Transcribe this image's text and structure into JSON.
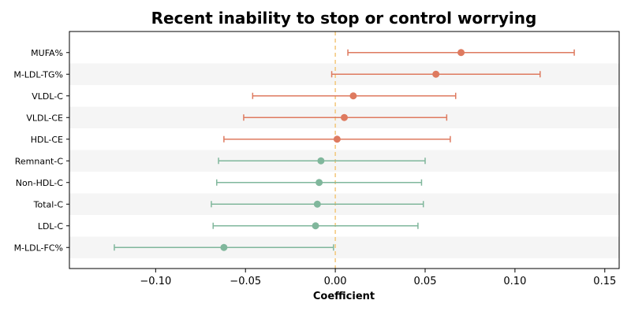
{
  "chart_data": {
    "type": "forest",
    "title": "Recent inability to stop or control worrying",
    "xlabel": "Coefficient",
    "ylabel": "",
    "xlim": [
      -0.148,
      0.158
    ],
    "xticks": [
      -0.1,
      -0.05,
      0.0,
      0.05,
      0.1,
      0.15
    ],
    "xtick_labels": [
      "−0.10",
      "−0.05",
      "0.00",
      "0.05",
      "0.10",
      "0.15"
    ],
    "reference_line": 0,
    "grid": false,
    "colors": {
      "positive": "#de7a5f",
      "negative": "#80b79c",
      "reference": "#f3c77a",
      "band": "#f5f5f5"
    },
    "categories": [
      "MUFA%",
      "M-LDL-TG%",
      "VLDL-C",
      "VLDL-CE",
      "HDL-CE",
      "Remnant-C",
      "Non-HDL-C",
      "Total-C",
      "LDL-C",
      "M-LDL-FC%"
    ],
    "estimates": [
      0.07,
      0.056,
      0.01,
      0.005,
      0.001,
      -0.008,
      -0.009,
      -0.01,
      -0.011,
      -0.062
    ],
    "ci_low": [
      0.007,
      -0.002,
      -0.046,
      -0.051,
      -0.062,
      -0.065,
      -0.066,
      -0.069,
      -0.068,
      -0.123
    ],
    "ci_high": [
      0.133,
      0.114,
      0.067,
      0.062,
      0.064,
      0.05,
      0.048,
      0.049,
      0.046,
      -0.001
    ]
  }
}
